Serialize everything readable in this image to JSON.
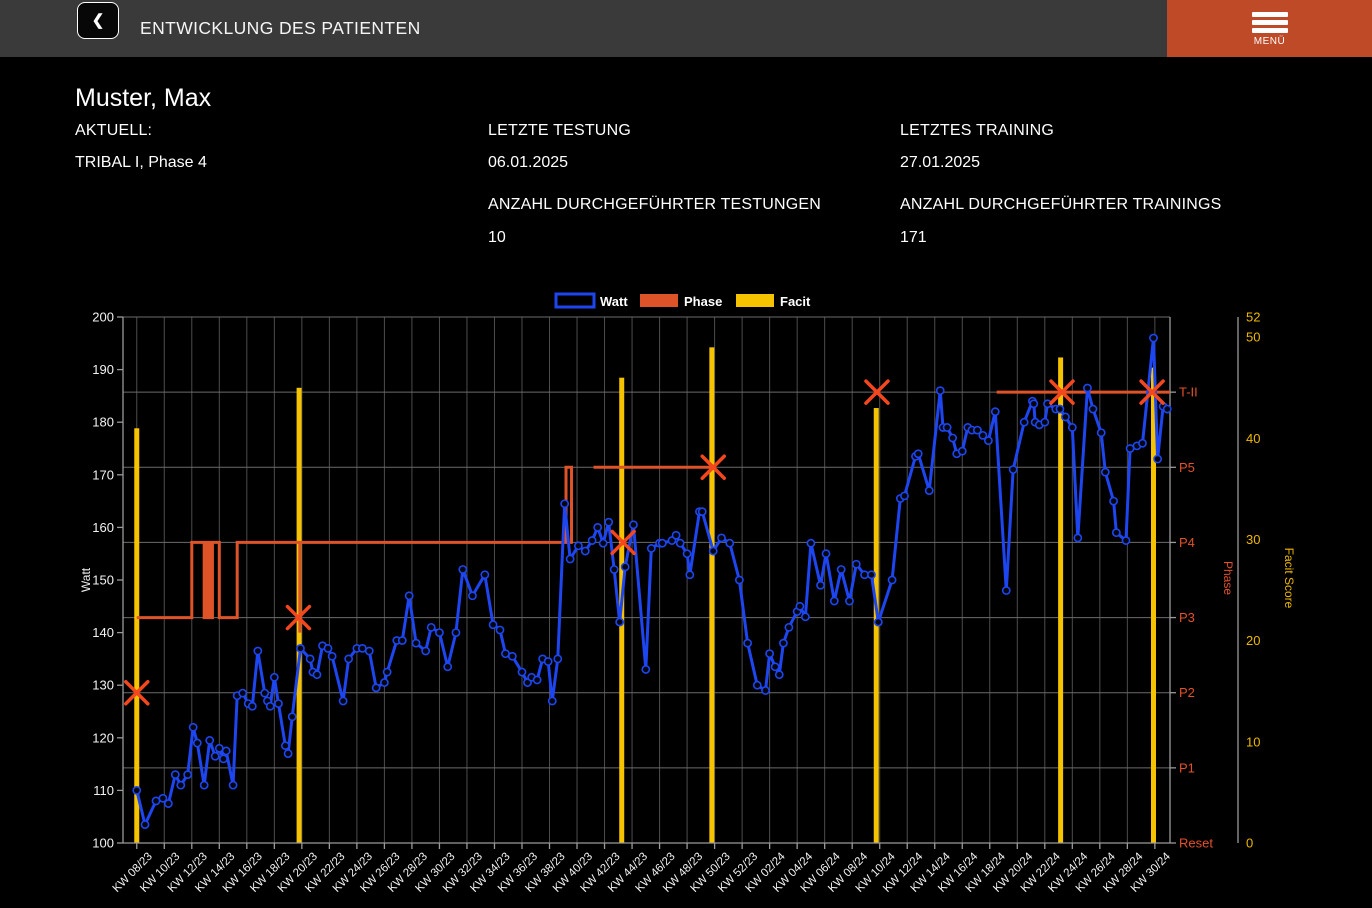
{
  "header": {
    "title": "ENTWICKLUNG DES PATIENTEN",
    "back_glyph": "❮",
    "menu_label": "MENÜ"
  },
  "patient": {
    "name": "Muster, Max",
    "aktuell_label": "AKTUELL:",
    "aktuell_value": "TRIBAL I, Phase 4",
    "letzte_testung_label": "LETZTE TESTUNG",
    "letzte_testung_value": "06.01.2025",
    "letztes_training_label": "LETZTES TRAINING",
    "letztes_training_value": "27.01.2025",
    "anzahl_testungen_label": "ANZAHL DURCHGEFÜHRTER TESTUNGEN",
    "anzahl_testungen_value": "10",
    "anzahl_trainings_label": "ANZAHL DURCHGEFÜHRTER TRAININGS",
    "anzahl_trainings_value": "171"
  },
  "colors": {
    "header_bg": "#3a3a3a",
    "menu_bg": "#bf4a28",
    "watt_blue": "#1d46f0",
    "phase_orange": "#de5327",
    "facit_yellow": "#f6c300",
    "marker_red": "#f4471d",
    "phase_label": "#e4502a",
    "facit_label": "#edb800",
    "grid_v": "#4d4d4d",
    "grid_h": "#6b6b6b",
    "axis": "#9a9a9a",
    "tick_text": "#f2f2f2"
  },
  "chart_data": {
    "type": "line",
    "legend": [
      {
        "label": "Watt",
        "style": "outline"
      },
      {
        "label": "Phase",
        "style": "fill"
      },
      {
        "label": "Facit",
        "style": "fill"
      }
    ],
    "x_axis": {
      "unit": "calendar week (2-week ticks)",
      "tick_labels": [
        "KW 08/23",
        "KW 10/23",
        "KW 12/23",
        "KW 14/23",
        "KW 16/23",
        "KW 18/23",
        "KW 20/23",
        "KW 22/23",
        "KW 24/23",
        "KW 26/23",
        "KW 28/23",
        "KW 30/23",
        "KW 32/23",
        "KW 34/23",
        "KW 36/23",
        "KW 38/23",
        "KW 40/23",
        "KW 42/23",
        "KW 44/23",
        "KW 46/23",
        "KW 48/23",
        "KW 50/23",
        "KW 52/23",
        "KW 02/24",
        "KW 04/24",
        "KW 06/24",
        "KW 08/24",
        "KW 10/24",
        "KW 12/24",
        "KW 14/24",
        "KW 16/24",
        "KW 18/24",
        "KW 20/24",
        "KW 22/24",
        "KW 24/24",
        "KW 26/24",
        "KW 28/24",
        "KW 30/24"
      ],
      "domain_weeks": [
        -1,
        75.1
      ]
    },
    "y_left": {
      "label": "Watt",
      "min": 100,
      "max": 200,
      "ticks": [
        100,
        110,
        120,
        130,
        140,
        150,
        160,
        170,
        180,
        190,
        200
      ]
    },
    "y_phase": {
      "label": "Phase",
      "tick_labels": [
        "Reset",
        "P1",
        "P2",
        "P3",
        "P4",
        "P5",
        "T-II"
      ],
      "level_scale": "0=Reset,1=P1,2=P2,3=P3,4=P4,5=P5,6=T-II,axis_top=7"
    },
    "y_facit": {
      "label": "Facit Score",
      "min": 0,
      "max": 52,
      "ticks": [
        0,
        10,
        20,
        30,
        40,
        50,
        52
      ]
    },
    "watt_series": [
      [
        0,
        110
      ],
      [
        0.6,
        103.5
      ],
      [
        1.4,
        108
      ],
      [
        1.9,
        108.5
      ],
      [
        2.3,
        107.5
      ],
      [
        2.8,
        113
      ],
      [
        3.2,
        111
      ],
      [
        3.7,
        113
      ],
      [
        4.1,
        122
      ],
      [
        4.4,
        119
      ],
      [
        4.9,
        111
      ],
      [
        5.3,
        119.5
      ],
      [
        5.7,
        116.5
      ],
      [
        6,
        118
      ],
      [
        6.3,
        116
      ],
      [
        6.5,
        117.5
      ],
      [
        7,
        111
      ],
      [
        7.3,
        128
      ],
      [
        7.7,
        128.5
      ],
      [
        8.1,
        126.5
      ],
      [
        8.4,
        126
      ],
      [
        8.8,
        136.5
      ],
      [
        9.3,
        128.5
      ],
      [
        9.5,
        127
      ],
      [
        9.7,
        126
      ],
      [
        10,
        131.5
      ],
      [
        10.3,
        126.5
      ],
      [
        10.8,
        118.5
      ],
      [
        11,
        117
      ],
      [
        11.3,
        124
      ],
      [
        11.9,
        137
      ],
      [
        12.6,
        135
      ],
      [
        12.8,
        132.5
      ],
      [
        13.1,
        132
      ],
      [
        13.5,
        137.5
      ],
      [
        13.9,
        137
      ],
      [
        14.2,
        135.5
      ],
      [
        15,
        127
      ],
      [
        15.4,
        135
      ],
      [
        16,
        137
      ],
      [
        16.4,
        137
      ],
      [
        16.9,
        136.5
      ],
      [
        17.4,
        129.5
      ],
      [
        18,
        130.5
      ],
      [
        18.2,
        132.5
      ],
      [
        18.9,
        138.5
      ],
      [
        19.3,
        138.5
      ],
      [
        19.8,
        147
      ],
      [
        20.3,
        138
      ],
      [
        21,
        136.5
      ],
      [
        21.4,
        141
      ],
      [
        22,
        140
      ],
      [
        22.6,
        133.5
      ],
      [
        23.2,
        140
      ],
      [
        23.7,
        152
      ],
      [
        24.4,
        147
      ],
      [
        25.3,
        151
      ],
      [
        25.9,
        141.5
      ],
      [
        26.4,
        140.5
      ],
      [
        26.8,
        136
      ],
      [
        27.3,
        135.5
      ],
      [
        28,
        132.5
      ],
      [
        28.4,
        130.5
      ],
      [
        28.7,
        131.5
      ],
      [
        29.1,
        131
      ],
      [
        29.5,
        135
      ],
      [
        29.9,
        134.5
      ],
      [
        30.2,
        127
      ],
      [
        30.6,
        135
      ],
      [
        31.1,
        164.5
      ],
      [
        31.5,
        154
      ],
      [
        32.1,
        156.5
      ],
      [
        32.6,
        155.5
      ],
      [
        33.1,
        157.5
      ],
      [
        33.5,
        160
      ],
      [
        33.9,
        157
      ],
      [
        34.3,
        161
      ],
      [
        34.7,
        152
      ],
      [
        35.1,
        142
      ],
      [
        35.5,
        152.5
      ],
      [
        36.1,
        160.5
      ],
      [
        37,
        133
      ],
      [
        37.4,
        156
      ],
      [
        38,
        157
      ],
      [
        38.2,
        157
      ],
      [
        38.9,
        157.5
      ],
      [
        39.2,
        158.5
      ],
      [
        39.5,
        157
      ],
      [
        40,
        155
      ],
      [
        40.2,
        151
      ],
      [
        40.9,
        163
      ],
      [
        41.1,
        163
      ],
      [
        41.9,
        155.5
      ],
      [
        42.5,
        158
      ],
      [
        43.1,
        157
      ],
      [
        43.8,
        150
      ],
      [
        44.4,
        138
      ],
      [
        45.1,
        130
      ],
      [
        45.7,
        129
      ],
      [
        46,
        136
      ],
      [
        46.4,
        133.5
      ],
      [
        46.7,
        132
      ],
      [
        47,
        138
      ],
      [
        47.4,
        141
      ],
      [
        48,
        144
      ],
      [
        48.2,
        145
      ],
      [
        48.6,
        143
      ],
      [
        49,
        157
      ],
      [
        49.7,
        149
      ],
      [
        50.1,
        155
      ],
      [
        50.7,
        146
      ],
      [
        51.2,
        152
      ],
      [
        51.8,
        146
      ],
      [
        52.3,
        153
      ],
      [
        52.9,
        151
      ],
      [
        53.4,
        151
      ],
      [
        53.9,
        142
      ],
      [
        54.9,
        150
      ],
      [
        55.5,
        165.5
      ],
      [
        55.8,
        166
      ],
      [
        56.6,
        173.5
      ],
      [
        56.8,
        174
      ],
      [
        57.6,
        167
      ],
      [
        58.4,
        186
      ],
      [
        58.6,
        179
      ],
      [
        58.9,
        179
      ],
      [
        59.3,
        177
      ],
      [
        59.6,
        174
      ],
      [
        60,
        174.5
      ],
      [
        60.4,
        179
      ],
      [
        60.7,
        178.5
      ],
      [
        61.1,
        178.5
      ],
      [
        61.5,
        177.5
      ],
      [
        61.9,
        176.5
      ],
      [
        62.4,
        182
      ],
      [
        63.2,
        148
      ],
      [
        63.7,
        171
      ],
      [
        64.5,
        180
      ],
      [
        65.1,
        184
      ],
      [
        65.2,
        183.5
      ],
      [
        65.3,
        180
      ],
      [
        65.6,
        179.5
      ],
      [
        66,
        180
      ],
      [
        66.2,
        183.5
      ],
      [
        66.8,
        182.5
      ],
      [
        67.1,
        182.5
      ],
      [
        67.5,
        181
      ],
      [
        68,
        179
      ],
      [
        68.4,
        158
      ],
      [
        69.1,
        186.5
      ],
      [
        69.5,
        182.5
      ],
      [
        70.1,
        178
      ],
      [
        70.4,
        170.5
      ],
      [
        71,
        165
      ],
      [
        71.2,
        159
      ],
      [
        71.9,
        157.5
      ],
      [
        72.2,
        175
      ],
      [
        72.7,
        175.5
      ],
      [
        73.1,
        176
      ],
      [
        73.9,
        196
      ],
      [
        74.2,
        173
      ],
      [
        74.6,
        183
      ],
      [
        74.9,
        182.5
      ]
    ],
    "phase_segments": [
      [
        [
          0,
          3
        ],
        [
          4,
          3
        ],
        [
          4,
          4
        ],
        [
          4.9,
          4
        ],
        [
          4.9,
          3
        ],
        [
          5.1,
          3
        ],
        [
          5.1,
          4
        ],
        [
          5.3,
          4
        ],
        [
          5.3,
          3
        ],
        [
          5.5,
          3
        ],
        [
          5.5,
          4
        ],
        [
          6,
          4
        ],
        [
          6,
          3
        ],
        [
          7.3,
          3
        ],
        [
          7.3,
          4
        ],
        [
          31.2,
          4
        ],
        [
          31.2,
          5
        ],
        [
          31.6,
          5
        ],
        [
          31.6,
          4
        ],
        [
          31.7,
          4
        ]
      ],
      [
        [
          11.85,
          4
        ],
        [
          11.85,
          2.8
        ]
      ],
      [
        [
          33.2,
          5
        ],
        [
          41.95,
          5
        ]
      ],
      [
        [
          62.5,
          6
        ],
        [
          75.1,
          6
        ]
      ]
    ],
    "facit_bars": [
      [
        0,
        41
      ],
      [
        11.8,
        45
      ],
      [
        35.25,
        46
      ],
      [
        41.8,
        49
      ],
      [
        53.75,
        43
      ],
      [
        67.15,
        48
      ],
      [
        73.9,
        47
      ]
    ],
    "test_markers": [
      [
        0,
        2
      ],
      [
        11.75,
        3
      ],
      [
        35.35,
        4
      ],
      [
        41.9,
        5
      ],
      [
        53.8,
        6
      ],
      [
        67.25,
        6
      ],
      [
        73.8,
        6
      ]
    ]
  }
}
